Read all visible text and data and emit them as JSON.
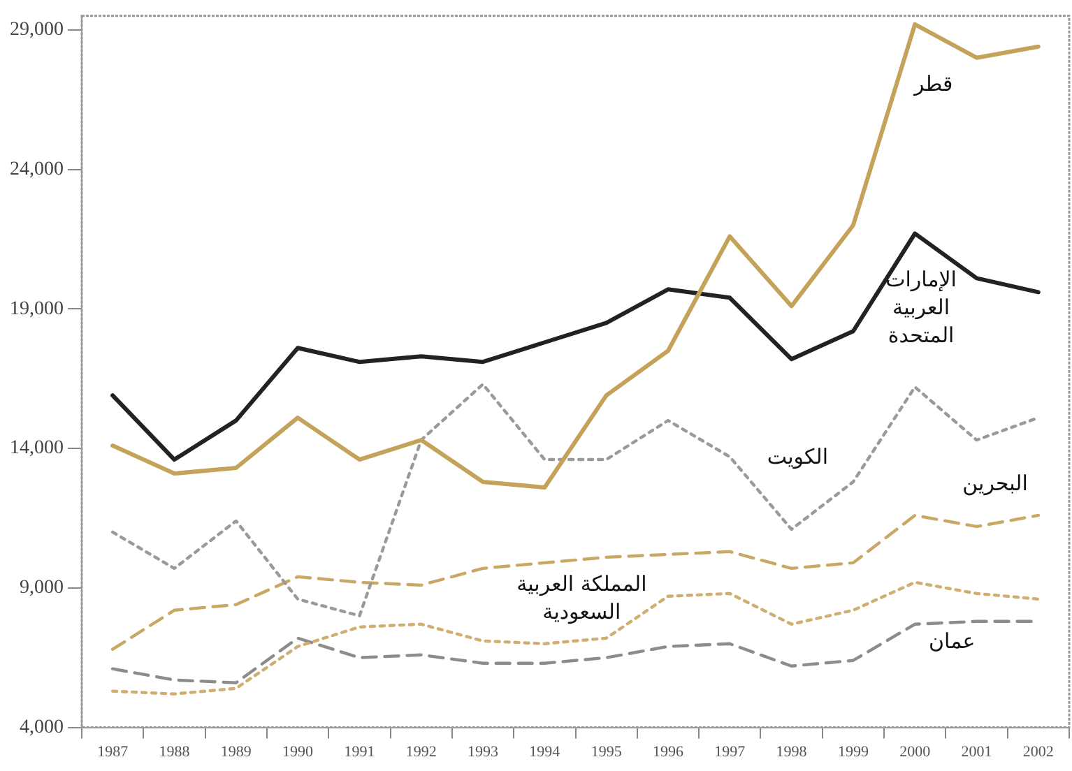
{
  "chart_data": {
    "type": "line",
    "categories": [
      "1987",
      "1988",
      "1989",
      "1990",
      "1991",
      "1992",
      "1993",
      "1994",
      "1995",
      "1996",
      "1997",
      "1998",
      "1999",
      "2000",
      "2001",
      "2002"
    ],
    "ylim": [
      4000,
      29500
    ],
    "yticks": [
      {
        "value": 4000,
        "label": "4,000"
      },
      {
        "value": 9000,
        "label": "9,000"
      },
      {
        "value": 14000,
        "label": "14,000"
      },
      {
        "value": 19000,
        "label": "19,000"
      },
      {
        "value": 24000,
        "label": "24,000"
      },
      {
        "value": 29000,
        "label": "29,000"
      }
    ],
    "grid": false,
    "legend": false,
    "marker": "none",
    "series": [
      {
        "name": "قطر",
        "color": "#c4a25a",
        "line_style": "solid",
        "values": [
          14100,
          13100,
          13300,
          15100,
          13600,
          14300,
          12800,
          12600,
          15900,
          17500,
          21600,
          19100,
          22000,
          29200,
          28000,
          28400
        ]
      },
      {
        "name": "الإمارات العربية المتحدة",
        "color": "#222222",
        "line_style": "solid",
        "values": [
          15900,
          13600,
          15000,
          17600,
          17100,
          17300,
          17100,
          17800,
          18500,
          19700,
          19400,
          17200,
          18200,
          21700,
          20100,
          19600
        ]
      },
      {
        "name": "الكويت",
        "color": "#9a9a9a",
        "line_style": "dotted",
        "values": [
          11000,
          9700,
          11400,
          8600,
          8000,
          14300,
          16300,
          13600,
          13600,
          15000,
          13700,
          11100,
          12800,
          16200,
          14300,
          15100
        ]
      },
      {
        "name": "البحرين",
        "color": "#c9a866",
        "line_style": "dashed",
        "values": [
          6800,
          8200,
          8400,
          9400,
          9200,
          9100,
          9700,
          9900,
          10100,
          10200,
          10300,
          9700,
          9900,
          11600,
          11200,
          11600
        ]
      },
      {
        "name": "المملكة العربية السعودية",
        "color": "#cfae70",
        "line_style": "dotted",
        "values": [
          5300,
          5200,
          5400,
          6900,
          7600,
          7700,
          7100,
          7000,
          7200,
          8700,
          8800,
          7700,
          8200,
          9200,
          8800,
          8600
        ]
      },
      {
        "name": "عمان",
        "color": "#8c8c8c",
        "line_style": "dashed",
        "values": [
          6100,
          5700,
          5600,
          7200,
          6500,
          6600,
          6300,
          6300,
          6500,
          6900,
          7000,
          6200,
          6400,
          7700,
          7800,
          7800
        ]
      }
    ]
  }
}
